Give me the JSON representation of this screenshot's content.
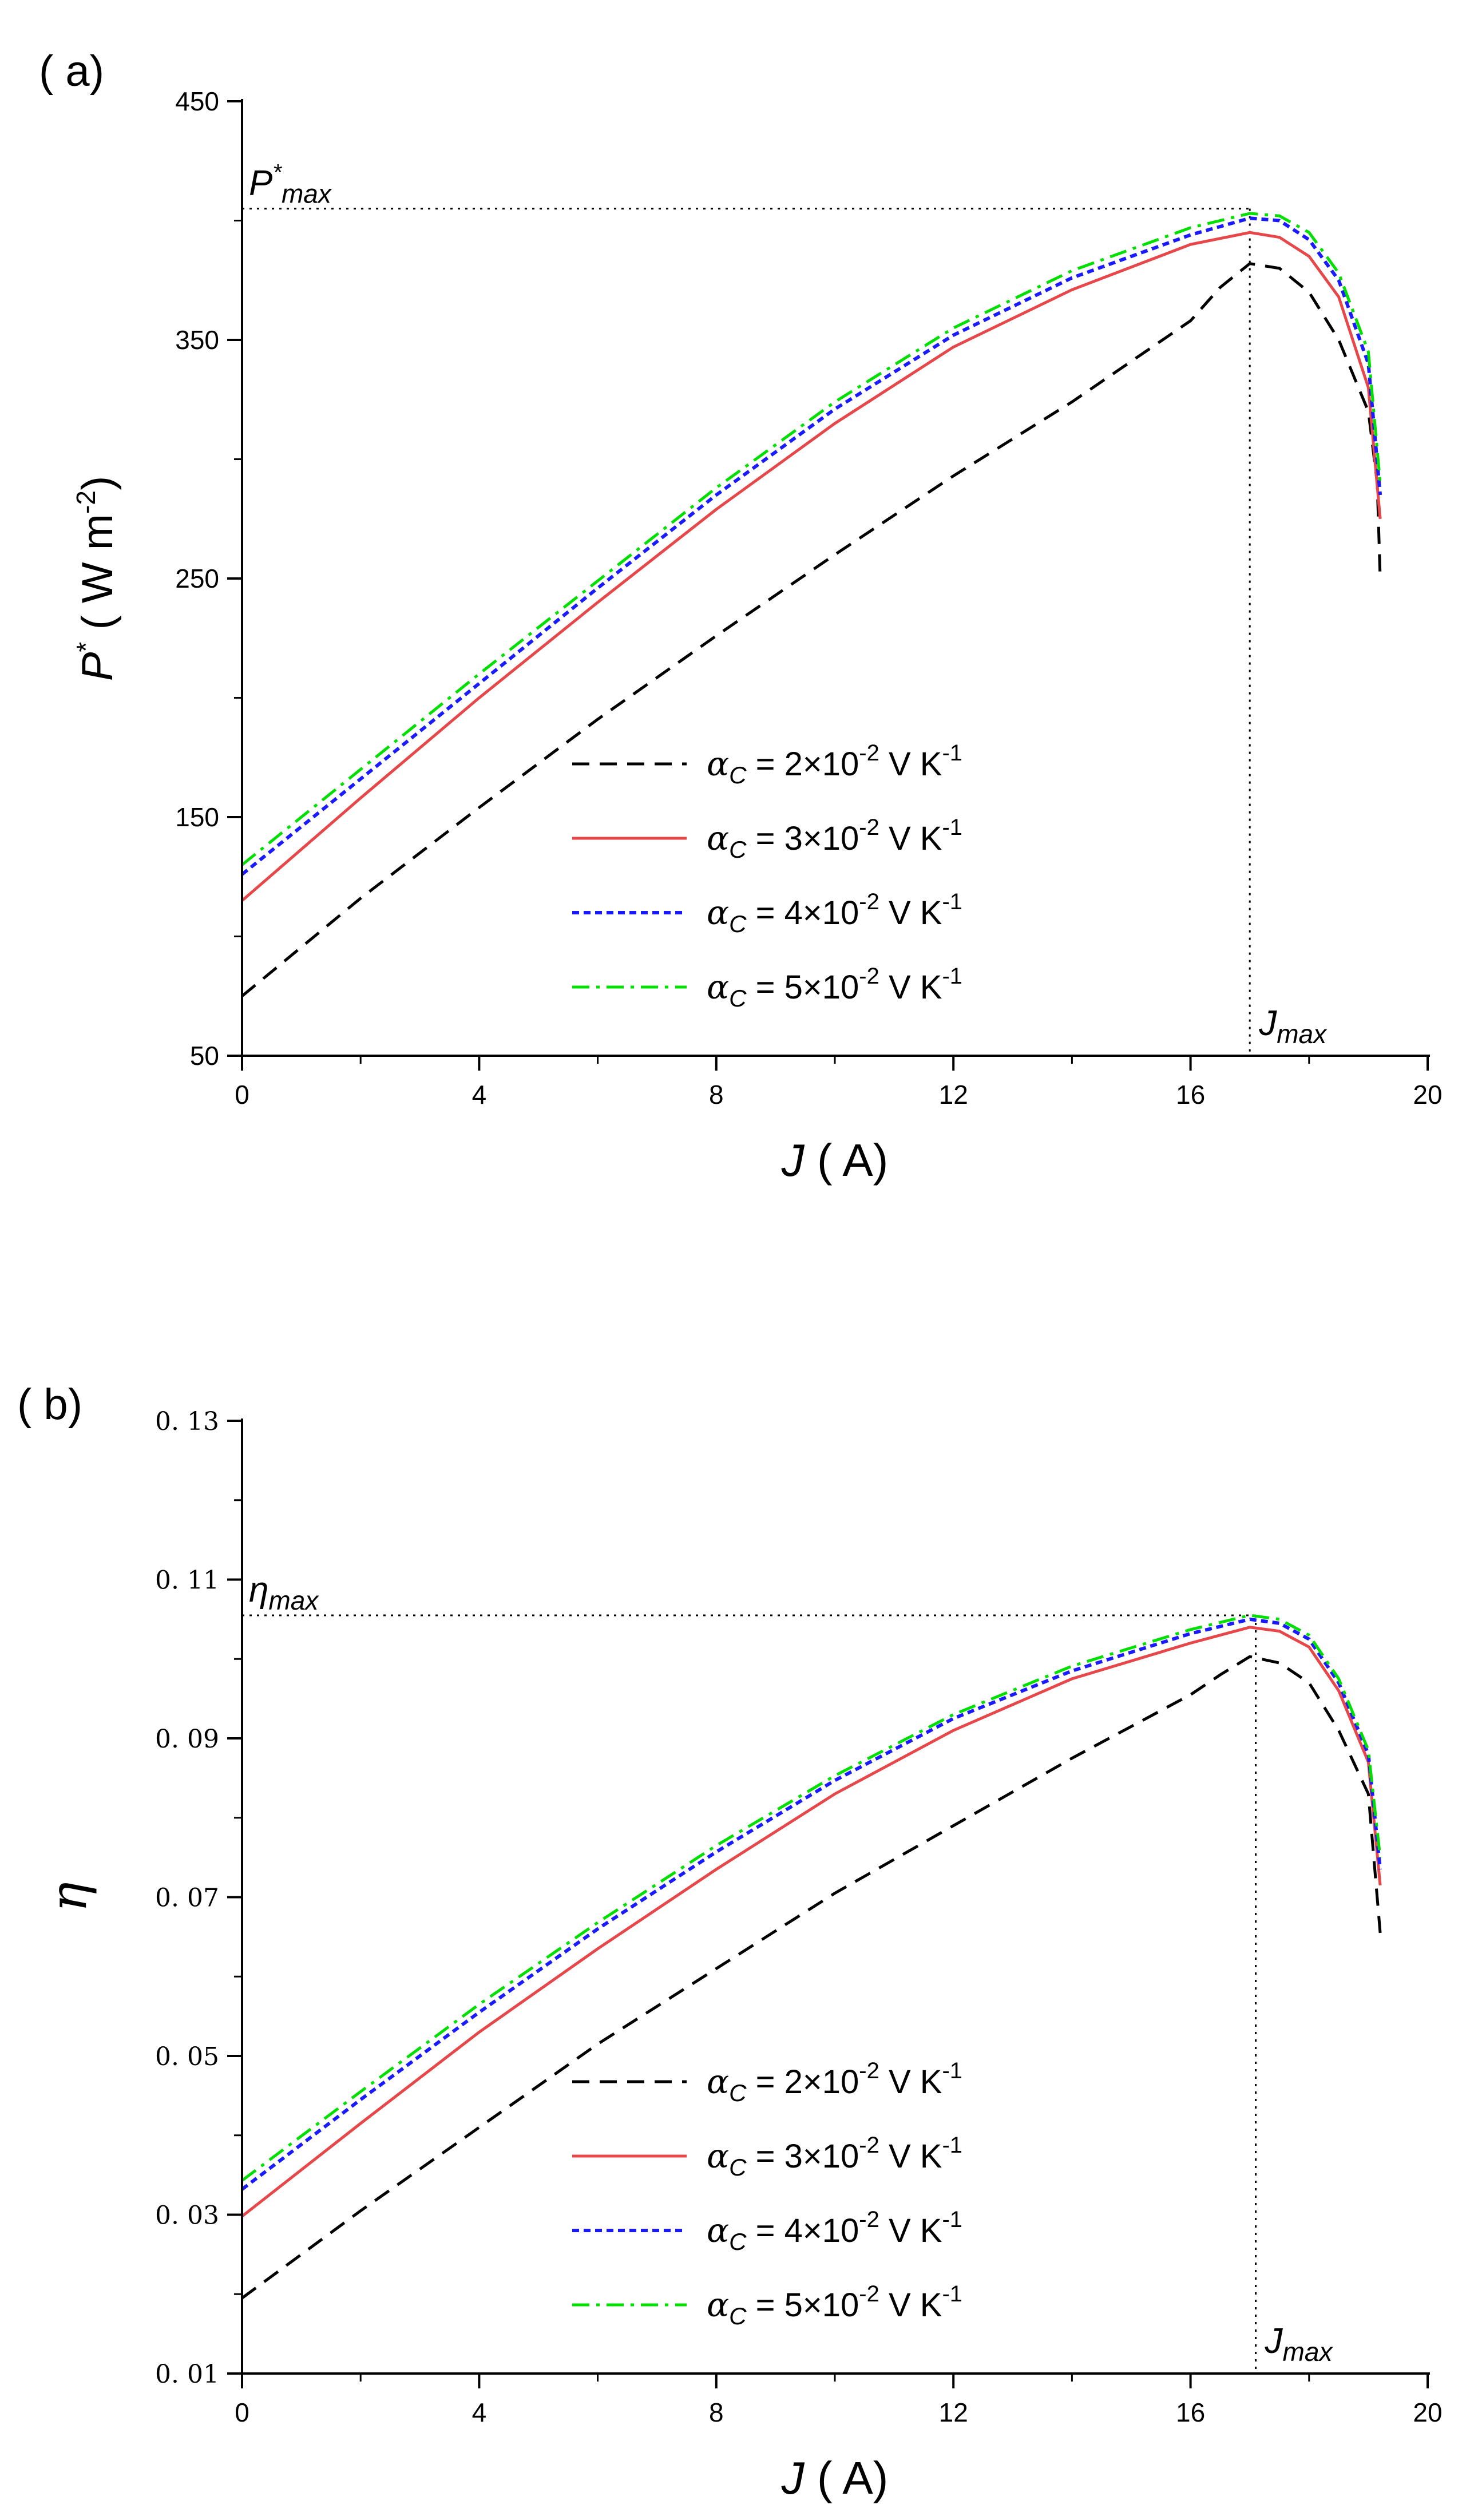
{
  "chart_data": [
    {
      "type": "line",
      "panel_label": "( a)",
      "title": "",
      "xlabel": "J",
      "xlabel_unit": "( A)",
      "ylabel": "P",
      "ylabel_sup": "*",
      "ylabel_unit": "( W m",
      "ylabel_unit_sup": "-2",
      "ylabel_unit_close": ")",
      "xlim": [
        0,
        20
      ],
      "ylim": [
        50,
        450
      ],
      "x_ticks": [
        0,
        4,
        8,
        12,
        16,
        20
      ],
      "y_ticks": [
        50,
        150,
        250,
        350,
        450
      ],
      "x_tick_labels": [
        "0",
        "4",
        "8",
        "12",
        "16",
        "20"
      ],
      "y_tick_labels": [
        "50",
        "150",
        "250",
        "350",
        "450"
      ],
      "grid": false,
      "legend_position": "lower-center",
      "reference": {
        "y_value": 405,
        "x_value": 17.0,
        "y_label": "P",
        "y_label_sup": "*",
        "y_label_sub": "max",
        "x_label": "J",
        "x_label_sub": "max"
      },
      "series": [
        {
          "name": "αC = 2×10-2 V K-1",
          "legend_symbol": "α",
          "legend_sub": "C",
          "legend_text": "= 2×10",
          "legend_exp": "-2",
          "legend_units": "V K",
          "legend_units_exp": "-1",
          "color": "#000000",
          "dash": "dashed",
          "points": [
            [
              0,
              75
            ],
            [
              2,
              116
            ],
            [
              4,
              154
            ],
            [
              6,
              191
            ],
            [
              8,
              226
            ],
            [
              10,
              260
            ],
            [
              12,
              293
            ],
            [
              14,
              324
            ],
            [
              15,
              341
            ],
            [
              16,
              358
            ],
            [
              16.5,
              372
            ],
            [
              17,
              382
            ],
            [
              17.5,
              380
            ],
            [
              18,
              370
            ],
            [
              18.5,
              350
            ],
            [
              19,
              320
            ],
            [
              19.15,
              290
            ],
            [
              19.2,
              250
            ]
          ]
        },
        {
          "name": "αC = 3×10-2 V K-1",
          "legend_symbol": "α",
          "legend_sub": "C",
          "legend_text": "= 3×10",
          "legend_exp": "-2",
          "legend_units": "V K",
          "legend_units_exp": "-1",
          "color": "#e8474a",
          "dash": "solid",
          "points": [
            [
              0,
              115
            ],
            [
              2,
              158
            ],
            [
              4,
              200
            ],
            [
              6,
              240
            ],
            [
              8,
              279
            ],
            [
              10,
              315
            ],
            [
              12,
              347
            ],
            [
              14,
              371
            ],
            [
              16,
              390
            ],
            [
              17,
              395
            ],
            [
              17.5,
              393
            ],
            [
              18,
              385
            ],
            [
              18.5,
              368
            ],
            [
              19,
              330
            ],
            [
              19.2,
              275
            ]
          ]
        },
        {
          "name": "αC = 4×10-2 V K-1",
          "legend_symbol": "α",
          "legend_sub": "C",
          "legend_text": "= 4×10",
          "legend_exp": "-2",
          "legend_units": "V K",
          "legend_units_exp": "-1",
          "color": "#1a1aff",
          "dash": "dotted",
          "points": [
            [
              0,
              126
            ],
            [
              2,
              166
            ],
            [
              4,
              206
            ],
            [
              6,
              246
            ],
            [
              8,
              285
            ],
            [
              10,
              321
            ],
            [
              12,
              352
            ],
            [
              14,
              376
            ],
            [
              16,
              394
            ],
            [
              17,
              401
            ],
            [
              17.5,
              400
            ],
            [
              18,
              392
            ],
            [
              18.5,
              375
            ],
            [
              19,
              340
            ],
            [
              19.2,
              285
            ]
          ]
        },
        {
          "name": "αC = 5×10-2 V K-1",
          "legend_symbol": "α",
          "legend_sub": "C",
          "legend_text": "= 5×10",
          "legend_exp": "-2",
          "legend_units": "V K",
          "legend_units_exp": "-1",
          "color": "#00e000",
          "dash": "dashdot",
          "points": [
            [
              0,
              130
            ],
            [
              2,
              170
            ],
            [
              4,
              210
            ],
            [
              6,
              249
            ],
            [
              8,
              288
            ],
            [
              10,
              324
            ],
            [
              12,
              355
            ],
            [
              14,
              379
            ],
            [
              16,
              397
            ],
            [
              17,
              403
            ],
            [
              17.5,
              402
            ],
            [
              18,
              395
            ],
            [
              18.5,
              378
            ],
            [
              19,
              345
            ],
            [
              19.2,
              290
            ]
          ]
        }
      ]
    },
    {
      "type": "line",
      "panel_label": "( b)",
      "title": "",
      "xlabel": "J",
      "xlabel_unit": "( A)",
      "ylabel": "η",
      "xlim": [
        0,
        20
      ],
      "ylim": [
        0.01,
        0.13
      ],
      "x_ticks": [
        0,
        4,
        8,
        12,
        16,
        20
      ],
      "y_ticks": [
        0.01,
        0.03,
        0.05,
        0.07,
        0.09,
        0.11,
        0.13
      ],
      "x_tick_labels": [
        "0",
        "4",
        "8",
        "12",
        "16",
        "20"
      ],
      "y_tick_labels": [
        "0. 01",
        "0. 03",
        "0. 05",
        "0. 07",
        "0. 09",
        "0. 11",
        "0. 13"
      ],
      "grid": false,
      "legend_position": "lower-center",
      "reference": {
        "y_value": 0.1055,
        "x_value": 17.1,
        "y_label": "η",
        "y_label_sup": "",
        "y_label_sub": "max",
        "x_label": "J",
        "x_label_sub": "max"
      },
      "series": [
        {
          "name": "αC = 2×10-2 V K-1",
          "legend_symbol": "α",
          "legend_sub": "C",
          "legend_text": "= 2×10",
          "legend_exp": "-2",
          "legend_units": "V K",
          "legend_units_exp": "-1",
          "color": "#000000",
          "dash": "dashed",
          "points": [
            [
              0,
              0.0195
            ],
            [
              2,
              0.0305
            ],
            [
              4,
              0.041
            ],
            [
              6,
              0.0515
            ],
            [
              8,
              0.061
            ],
            [
              10,
              0.0705
            ],
            [
              12,
              0.079
            ],
            [
              14,
              0.0875
            ],
            [
              16,
              0.0955
            ],
            [
              16.5,
              0.098
            ],
            [
              17,
              0.1003
            ],
            [
              17.5,
              0.0995
            ],
            [
              18,
              0.097
            ],
            [
              18.5,
              0.091
            ],
            [
              19,
              0.083
            ],
            [
              19.2,
              0.0655
            ]
          ]
        },
        {
          "name": "αC = 3×10-2 V K-1",
          "legend_symbol": "α",
          "legend_sub": "C",
          "legend_text": "= 3×10",
          "legend_exp": "-2",
          "legend_units": "V K",
          "legend_units_exp": "-1",
          "color": "#e8474a",
          "dash": "solid",
          "points": [
            [
              0,
              0.0298
            ],
            [
              2,
              0.0415
            ],
            [
              4,
              0.053
            ],
            [
              6,
              0.0635
            ],
            [
              8,
              0.0735
            ],
            [
              10,
              0.083
            ],
            [
              12,
              0.091
            ],
            [
              14,
              0.0975
            ],
            [
              16,
              0.102
            ],
            [
              17,
              0.104
            ],
            [
              17.5,
              0.1035
            ],
            [
              18,
              0.1015
            ],
            [
              18.5,
              0.096
            ],
            [
              19,
              0.087
            ],
            [
              19.2,
              0.0715
            ]
          ]
        },
        {
          "name": "αC = 4×10-2 V K-1",
          "legend_symbol": "α",
          "legend_sub": "C",
          "legend_text": "= 4×10",
          "legend_exp": "-2",
          "legend_units": "V K",
          "legend_units_exp": "-1",
          "color": "#1a1aff",
          "dash": "dotted",
          "points": [
            [
              0,
              0.0332
            ],
            [
              2,
              0.0445
            ],
            [
              4,
              0.0555
            ],
            [
              6,
              0.066
            ],
            [
              8,
              0.0757
            ],
            [
              10,
              0.0847
            ],
            [
              12,
              0.0925
            ],
            [
              14,
              0.0985
            ],
            [
              16,
              0.1032
            ],
            [
              17,
              0.105
            ],
            [
              17.5,
              0.1045
            ],
            [
              18,
              0.1025
            ],
            [
              18.5,
              0.097
            ],
            [
              19,
              0.088
            ],
            [
              19.2,
              0.0735
            ]
          ]
        },
        {
          "name": "αC = 5×10-2 V K-1",
          "legend_symbol": "α",
          "legend_sub": "C",
          "legend_text": "= 5×10",
          "legend_exp": "-2",
          "legend_units": "V K",
          "legend_units_exp": "-1",
          "color": "#00e000",
          "dash": "dashdot",
          "points": [
            [
              0,
              0.0343
            ],
            [
              2,
              0.0455
            ],
            [
              4,
              0.0565
            ],
            [
              6,
              0.0668
            ],
            [
              8,
              0.0765
            ],
            [
              10,
              0.0853
            ],
            [
              12,
              0.093
            ],
            [
              14,
              0.0991
            ],
            [
              16,
              0.1037
            ],
            [
              17,
              0.1055
            ],
            [
              17.5,
              0.105
            ],
            [
              18,
              0.103
            ],
            [
              18.5,
              0.0975
            ],
            [
              19,
              0.0885
            ],
            [
              19.2,
              0.075
            ]
          ]
        }
      ]
    }
  ]
}
